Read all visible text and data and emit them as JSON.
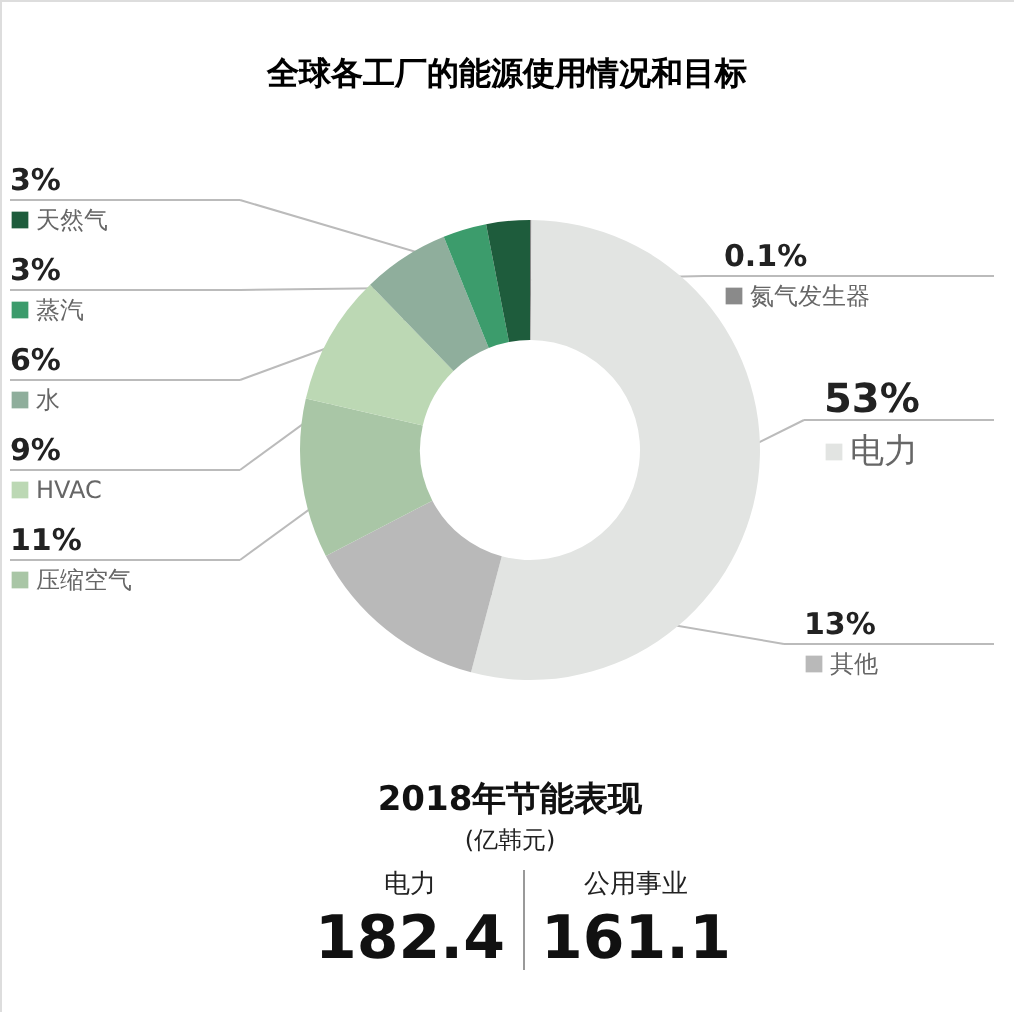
{
  "chart_data": {
    "type": "donut",
    "title": "全球各工厂的能源使用情况和目标",
    "categories": [
      "氮气发生器",
      "电力",
      "其他",
      "压缩空气",
      "HVAC",
      "水",
      "蒸汽",
      "天然气"
    ],
    "values": [
      0.1,
      53,
      13,
      11,
      9,
      6,
      3,
      3
    ],
    "colors": [
      "#8a8a8a",
      "#e2e4e2",
      "#b9b9b9",
      "#a9c6a6",
      "#bcd8b4",
      "#8fae9c",
      "#3c9c6c",
      "#1e5c3c"
    ],
    "value_labels": [
      "0.1%",
      "53%",
      "13%",
      "11%",
      "9%",
      "6%",
      "3%",
      "3%"
    ],
    "legend": "left",
    "annotations": [
      "2018年节能表现",
      "(亿韩元)",
      "电力",
      "182.4",
      "公用事业",
      "161.1"
    ]
  }
}
